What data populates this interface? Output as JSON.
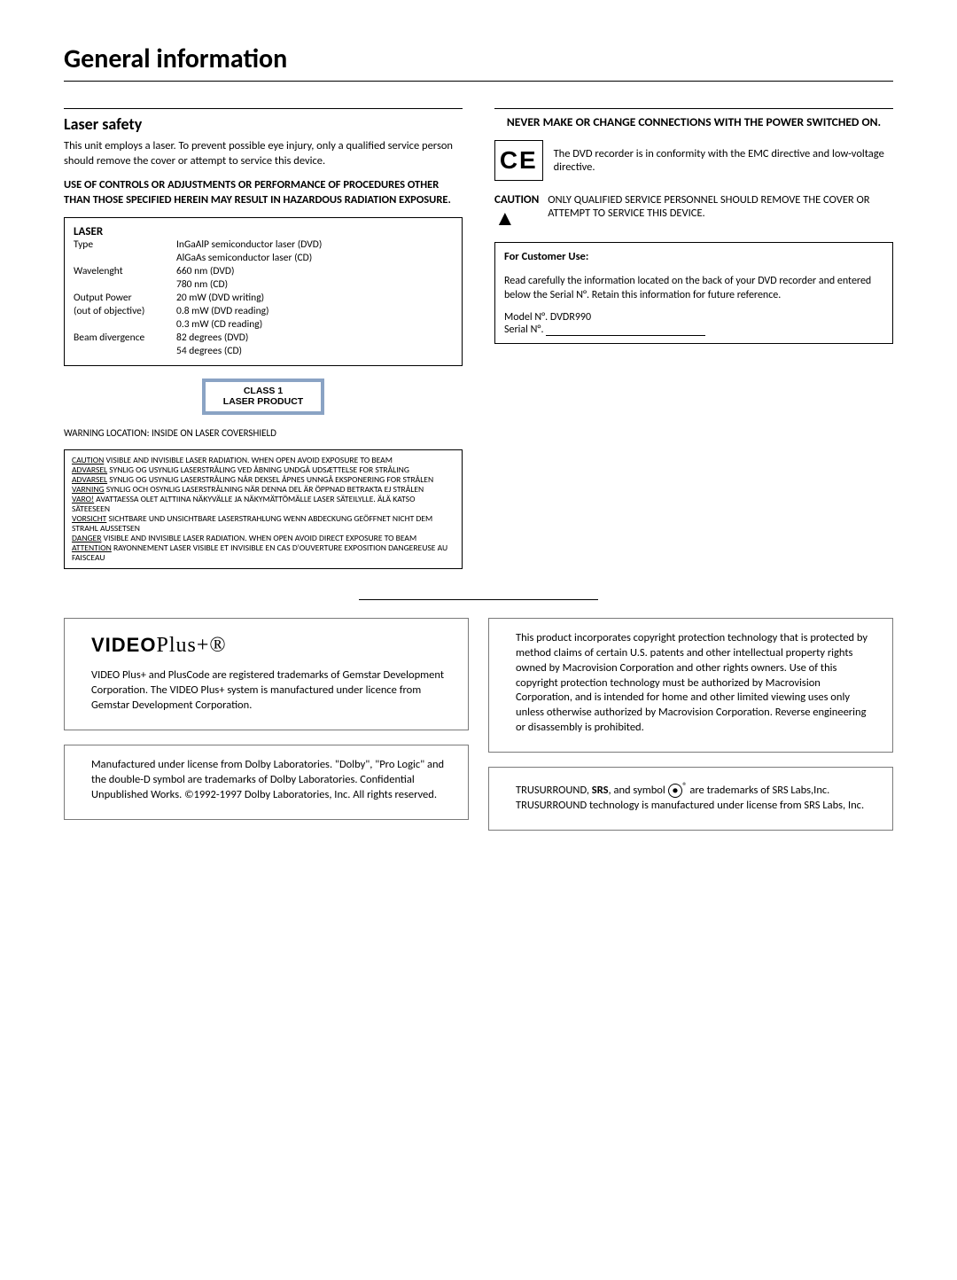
{
  "page_title": "General information",
  "left": {
    "laser_safety": {
      "title": "Laser safety",
      "intro": "This unit employs a laser. To prevent possible eye injury, only a qualified service person should remove the cover or attempt to service this device.",
      "bold_warning": "USE OF CONTROLS OR ADJUSTMENTS OR PERFORMANCE OF PROCEDURES OTHER THAN THOSE SPECIFIED HEREIN MAY RESULT IN HAZARDOUS RADIATION EXPOSURE.",
      "laser_box_title": "LASER",
      "specs": [
        [
          "Type",
          "InGaAlP semiconductor laser (DVD)"
        ],
        [
          "",
          "AlGaAs semiconductor laser (CD)"
        ],
        [
          "Wavelenght",
          "660 nm (DVD)"
        ],
        [
          "",
          "780 nm (CD)"
        ],
        [
          "Output Power",
          "20 mW (DVD writing)"
        ],
        [
          "(out of objective)",
          "0.8 mW (DVD reading)"
        ],
        [
          "",
          "0.3 mW (CD reading)"
        ],
        [
          "Beam divergence",
          "82 degrees (DVD)"
        ],
        [
          "",
          "54 degrees (CD)"
        ]
      ],
      "class1_line1": "CLASS 1",
      "class1_line2": "LASER PRODUCT",
      "warning_location": "WARNING LOCATION: INSIDE ON LASER COVERSHIELD",
      "warning_entries": [
        {
          "label": "CAUTION",
          "text": " VISIBLE AND INVISIBLE LASER RADIATION. WHEN OPEN AVOID EXPOSURE TO BEAM"
        },
        {
          "label": "ADVARSEL",
          "text": " SYNLIG OG USYNLIG LASERSTRÅLING VED ÅBNING UNDGÅ UDSÆTTELSE FOR STRÅLING"
        },
        {
          "label": "ADVARSEL",
          "text": " SYNLIG OG USYNLIG LASERSTRÅLING NÅR DEKSEL ÅPNES UNNGÅ EKSPONERING FOR STRÅLEN"
        },
        {
          "label": "VARNING",
          "text": " SYNLIG OCH OSYNLIG LASERSTRÅLNING NÄR DENNA DEL ÄR ÖPPNAD BETRAKTA EJ STRÅLEN"
        },
        {
          "label": "VARO!",
          "text": " AVATTAESSA OLET ALTTIINA NÄKYVÄLLE JA NÄKYMÄTTÖMÄLLE LASER SÄTEILYLLE. ÄLÄ KATSO SÄTEESEEN"
        },
        {
          "label": "VORSICHT",
          "text": " SICHTBARE UND UNSICHTBARE LASERSTRAHLUNG WENN ABDECKUNG GEÖFFNET NICHT DEM STRAHL AUSSETSEN"
        },
        {
          "label": "DANGER",
          "text": " VISIBLE AND INVISIBLE LASER RADIATION. WHEN OPEN AVOID DIRECT EXPOSURE TO BEAM"
        },
        {
          "label": "ATTENTION",
          "text": " RAYONNEMENT LASER VISIBLE ET INVISIBLE EN CAS D'OUVERTURE EXPOSITION DANGEREUSE AU FAISCEAU"
        }
      ]
    }
  },
  "right": {
    "never_make": "NEVER MAKE OR CHANGE CONNECTIONS WITH THE POWER SWITCHED ON.",
    "ce_text": "The DVD recorder is in conformity with the EMC directive and low-voltage directive.",
    "caution_label": "CAUTION",
    "caution_text": "ONLY QUALIFIED SERVICE PERSONNEL SHOULD REMOVE THE COVER OR ATTEMPT TO SERVICE THIS DEVICE.",
    "customer": {
      "title": "For Customer Use:",
      "body": "Read carefully the information located on the back of your DVD recorder and entered below the Serial N°. Retain this information for future reference.",
      "model_label": "Model N°. DVDR990",
      "serial_label": "Serial N°."
    }
  },
  "footer": {
    "video_logo_main": "VIDEO",
    "video_logo_script": "Plus+®",
    "video_text": "VIDEO Plus+ and PlusCode are registered trademarks of Gemstar Development Corporation. The VIDEO Plus+ system is manufactured under licence from Gemstar Development Corporation.",
    "dolby_text": "Manufactured under license from Dolby Laboratories. \"Dolby\", \"Pro Logic\" and the double-D symbol are trademarks of Dolby Laboratories. Confidential Unpublished Works. ©1992-1997 Dolby Laboratories, Inc. All rights reserved.",
    "macro_text": "This product incorporates copyright protection technology that is protected by method claims of certain U.S. patents and other intellectual property rights owned by Macrovision Corporation and other rights owners. Use of this copyright protection technology must be authorized by Macrovision Corporation, and is intended for home and other limited viewing uses only unless otherwise authorized by Macrovision Corporation. Reverse engineering or disassembly is prohibited.",
    "srs_prefix": "TRUSURROUND, ",
    "srs_bold": "SRS",
    "srs_mid": ", and symbol ",
    "srs_symbol": "●",
    "srs_sup": "®",
    "srs_suffix": " are trademarks of SRS Labs,Inc. TRUSURROUND technology is manufactured under license from SRS Labs, Inc."
  }
}
